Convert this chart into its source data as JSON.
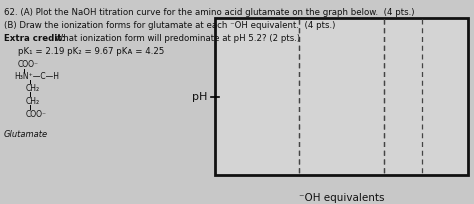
{
  "title_text": "62. (A) Plot the NaOH titration curve for the amino acid glutamate on the graph below.  (4 pts.)",
  "line2_text": "(B) Draw the ionization forms for glutamate at each ⁻OH equivalent.  (4 pts.)",
  "extra_bold": "Extra credit:",
  "extra_rest": " What ionization form will predominate at pH 5.2? (2 pts.)",
  "pk_text": "pK₁ = 2.19 pK₂ = 9.67 pKᴀ = 4.25",
  "ylabel": "pH",
  "xlabel": "⁻OH equivalents",
  "background_color": "#c8c8c8",
  "graph_bg": "#d4d4d4",
  "dashed_line_color": "#444444",
  "border_color": "#111111",
  "text_color": "#111111",
  "struct_coo_top": "COO⁻",
  "struct_main": "H₃N⁺—C—H",
  "struct_ch2_1": "CH₂",
  "struct_ch2_2": "CH₂",
  "struct_coo_bot": "COO⁻",
  "struct_label": "Glutamate"
}
